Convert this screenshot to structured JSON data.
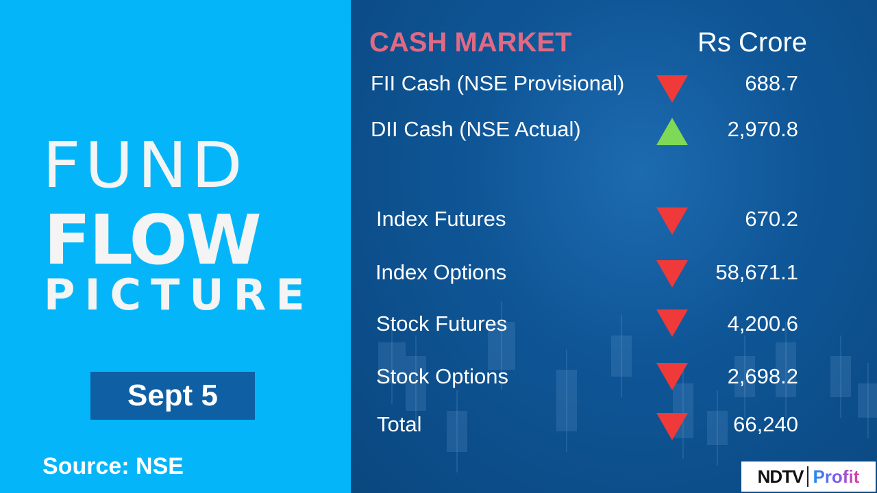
{
  "left": {
    "title_line1": "FUND",
    "title_line2": "FLOW",
    "title_line3": "PICTURE",
    "date": "Sept 5",
    "source": "Source: NSE"
  },
  "right": {
    "section_title": "CASH MARKET",
    "unit": "Rs Crore",
    "rows": [
      {
        "label": "FII Cash (NSE Provisional)",
        "direction": "down",
        "value": "688.7"
      },
      {
        "label": "DII Cash (NSE Actual)",
        "direction": "up",
        "value": "2,970.8"
      },
      {
        "label": "Index Futures",
        "direction": "down",
        "value": "670.2"
      },
      {
        "label": "Index Options",
        "direction": "down",
        "value": "58,671.1"
      },
      {
        "label": "Stock Futures",
        "direction": "down",
        "value": "4,200.6"
      },
      {
        "label": "Stock Options",
        "direction": "down",
        "value": "2,698.2"
      },
      {
        "label": "Total",
        "direction": "down",
        "value": "66,240"
      }
    ]
  },
  "logo": {
    "brand": "NDTV",
    "product": "Profit"
  },
  "colors": {
    "left_bg": "#04b6f9",
    "right_bg": "#0f5697",
    "title": "#e06a84",
    "down": "#f03a3a",
    "up": "#7ed957"
  }
}
